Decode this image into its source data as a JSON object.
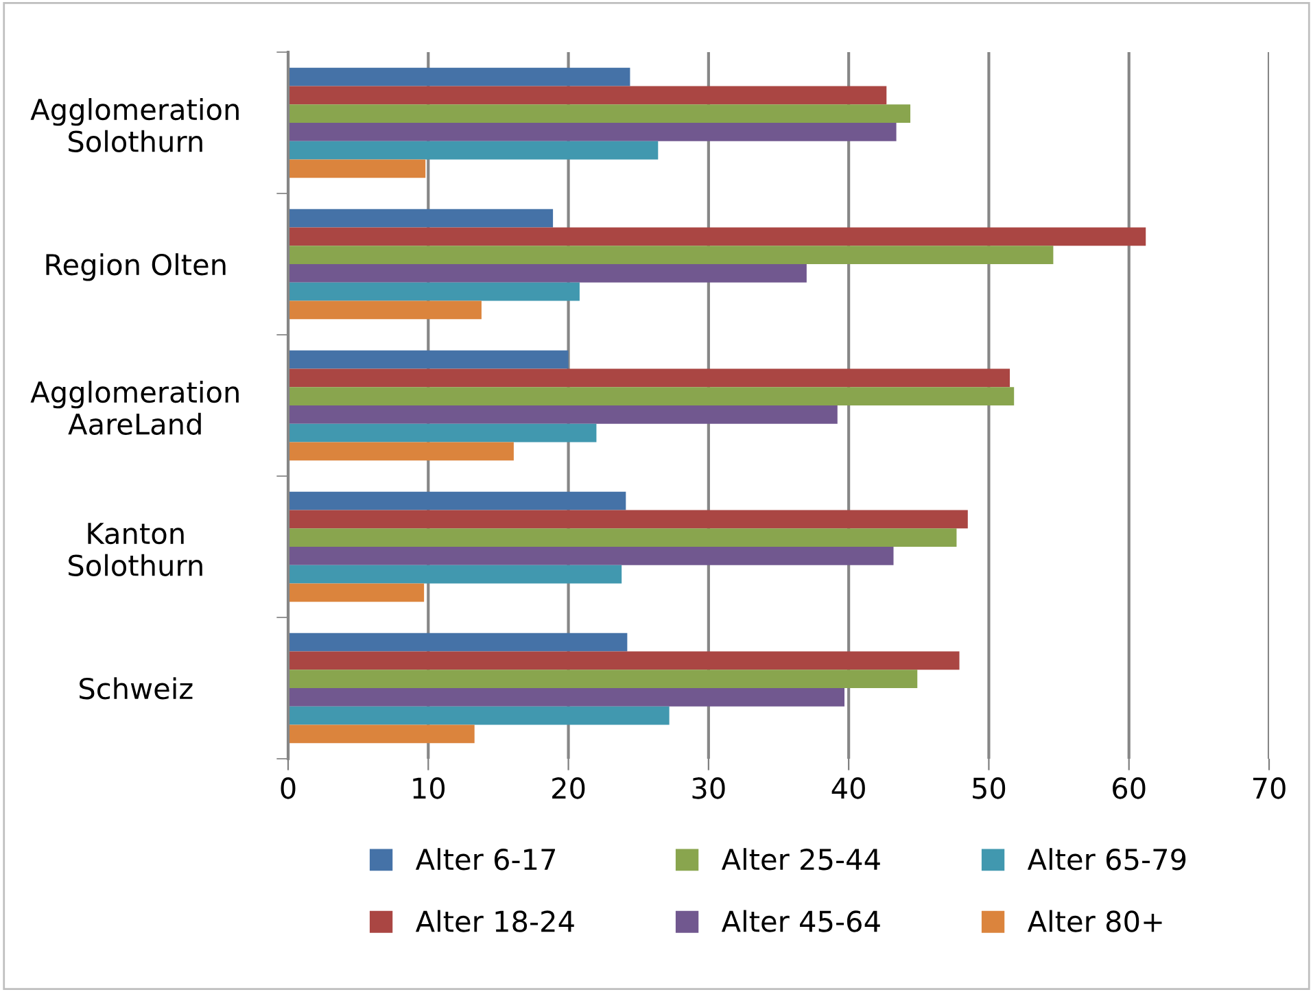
{
  "chart_data": {
    "type": "bar",
    "orientation": "horizontal",
    "categories": [
      "Agglomeration\nSolothurn",
      "Region Olten",
      "Agglomeration\nAareLand",
      "Kanton\nSolothurn",
      "Schweiz"
    ],
    "series": [
      {
        "name": "Alter 6-17",
        "color": "#4572a7",
        "values": [
          24.4,
          18.9,
          20.0,
          24.1,
          24.2
        ]
      },
      {
        "name": "Alter 18-24",
        "color": "#aa4643",
        "values": [
          42.7,
          61.2,
          51.5,
          48.5,
          47.9
        ]
      },
      {
        "name": "Alter 25-44",
        "color": "#89a54e",
        "values": [
          44.4,
          54.6,
          51.8,
          47.7,
          44.9
        ]
      },
      {
        "name": "Alter 45-64",
        "color": "#71588f",
        "values": [
          43.4,
          37.0,
          39.2,
          43.2,
          39.7
        ]
      },
      {
        "name": "Alter 65-79",
        "color": "#4198af",
        "values": [
          26.4,
          20.8,
          22.0,
          23.8,
          27.2
        ]
      },
      {
        "name": "Alter 80+",
        "color": "#db843d",
        "values": [
          9.8,
          13.8,
          16.1,
          9.7,
          13.3
        ]
      }
    ],
    "xlim": [
      0,
      70
    ],
    "xticks": [
      0,
      10,
      20,
      30,
      40,
      50,
      60,
      70
    ],
    "grid": "x",
    "legend": "bottom"
  }
}
